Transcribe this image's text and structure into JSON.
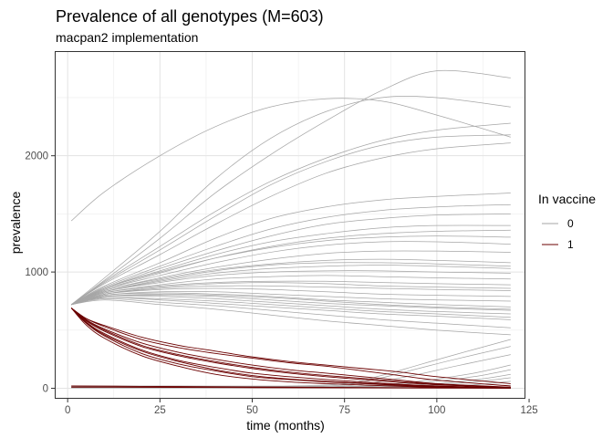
{
  "chart_data": {
    "type": "line",
    "title": "Prevalence of all genotypes (M=603)",
    "subtitle": "macpan2 implementation",
    "xlabel": "time (months)",
    "ylabel": "prevalence",
    "xlim": [
      -3.5,
      124
    ],
    "ylim": [
      -90,
      2900
    ],
    "x_ticks": [
      0,
      25,
      50,
      75,
      100,
      125
    ],
    "y_ticks": [
      0,
      1000,
      2000
    ],
    "grid": true,
    "legend": {
      "title": "In vaccine",
      "position": "right",
      "entries": [
        {
          "label": "0",
          "color": "#a6a6a6"
        },
        {
          "label": "1",
          "color": "#6b0000"
        }
      ]
    },
    "series": [
      {
        "group": "0",
        "x": [
          1,
          10,
          25,
          40,
          55,
          70,
          85,
          100,
          120
        ],
        "values": [
          1440,
          1690,
          2000,
          2250,
          2420,
          2490,
          2470,
          2350,
          2160
        ]
      },
      {
        "group": "0",
        "x": [
          1,
          10,
          25,
          40,
          55,
          70,
          85,
          100,
          120
        ],
        "values": [
          720,
          950,
          1350,
          1800,
          2150,
          2380,
          2500,
          2500,
          2420
        ]
      },
      {
        "group": "0",
        "x": [
          1,
          10,
          25,
          40,
          55,
          70,
          85,
          100,
          120
        ],
        "values": [
          720,
          930,
          1290,
          1680,
          2010,
          2300,
          2560,
          2730,
          2670
        ]
      },
      {
        "group": "0",
        "x": [
          1,
          10,
          25,
          40,
          55,
          70,
          85,
          100,
          120
        ],
        "values": [
          720,
          920,
          1220,
          1520,
          1780,
          1980,
          2130,
          2220,
          2280
        ]
      },
      {
        "group": "0",
        "x": [
          1,
          10,
          25,
          40,
          55,
          70,
          85,
          100,
          120
        ],
        "values": [
          720,
          910,
          1190,
          1480,
          1750,
          1950,
          2090,
          2160,
          2180
        ]
      },
      {
        "group": "0",
        "x": [
          1,
          10,
          25,
          40,
          55,
          70,
          85,
          100,
          120
        ],
        "values": [
          720,
          900,
          1150,
          1410,
          1650,
          1850,
          1980,
          2060,
          2110
        ]
      },
      {
        "group": "0",
        "x": [
          1,
          10,
          25,
          40,
          55,
          70,
          85,
          100,
          120
        ],
        "values": [
          720,
          880,
          1080,
          1290,
          1460,
          1560,
          1620,
          1650,
          1680
        ]
      },
      {
        "group": "0",
        "x": [
          1,
          10,
          25,
          40,
          55,
          70,
          85,
          100,
          120
        ],
        "values": [
          720,
          870,
          1050,
          1220,
          1370,
          1470,
          1530,
          1560,
          1580
        ]
      },
      {
        "group": "0",
        "x": [
          1,
          10,
          25,
          40,
          55,
          70,
          85,
          100,
          120
        ],
        "values": [
          720,
          860,
          1030,
          1180,
          1310,
          1410,
          1460,
          1490,
          1500
        ]
      },
      {
        "group": "0",
        "x": [
          1,
          10,
          25,
          40,
          55,
          70,
          85,
          100,
          120
        ],
        "values": [
          720,
          860,
          1010,
          1150,
          1260,
          1330,
          1380,
          1400,
          1400
        ]
      },
      {
        "group": "0",
        "x": [
          1,
          10,
          25,
          40,
          55,
          70,
          85,
          100,
          120
        ],
        "values": [
          720,
          850,
          990,
          1120,
          1220,
          1290,
          1330,
          1350,
          1360
        ]
      },
      {
        "group": "0",
        "x": [
          1,
          10,
          25,
          40,
          55,
          70,
          85,
          100,
          120
        ],
        "values": [
          720,
          850,
          970,
          1080,
          1170,
          1230,
          1260,
          1260,
          1240
        ]
      },
      {
        "group": "0",
        "x": [
          1,
          10,
          25,
          40,
          55,
          70,
          85,
          100,
          120
        ],
        "values": [
          720,
          840,
          950,
          1040,
          1110,
          1160,
          1180,
          1180,
          1170
        ]
      },
      {
        "group": "0",
        "x": [
          1,
          10,
          25,
          40,
          55,
          70,
          85,
          100,
          120
        ],
        "values": [
          720,
          840,
          940,
          1020,
          1070,
          1100,
          1110,
          1100,
          1080
        ]
      },
      {
        "group": "0",
        "x": [
          1,
          10,
          25,
          40,
          55,
          70,
          85,
          100,
          120
        ],
        "values": [
          720,
          830,
          920,
          990,
          1030,
          1050,
          1060,
          1050,
          1030
        ]
      },
      {
        "group": "0",
        "x": [
          1,
          10,
          25,
          40,
          55,
          70,
          85,
          100,
          120
        ],
        "values": [
          720,
          830,
          910,
          970,
          1000,
          1010,
          1010,
          1000,
          990
        ]
      },
      {
        "group": "0",
        "x": [
          1,
          10,
          25,
          40,
          55,
          70,
          85,
          100,
          120
        ],
        "values": [
          720,
          820,
          890,
          940,
          960,
          970,
          960,
          950,
          940
        ]
      },
      {
        "group": "0",
        "x": [
          1,
          10,
          25,
          40,
          55,
          70,
          85,
          100,
          120
        ],
        "values": [
          720,
          820,
          880,
          910,
          920,
          920,
          910,
          900,
          890
        ]
      },
      {
        "group": "0",
        "x": [
          1,
          10,
          25,
          40,
          55,
          70,
          85,
          100,
          120
        ],
        "values": [
          720,
          810,
          860,
          880,
          880,
          870,
          860,
          850,
          840
        ]
      },
      {
        "group": "0",
        "x": [
          1,
          10,
          25,
          40,
          55,
          70,
          85,
          100,
          120
        ],
        "values": [
          720,
          810,
          850,
          860,
          850,
          830,
          810,
          800,
          790
        ]
      },
      {
        "group": "0",
        "x": [
          1,
          10,
          25,
          40,
          55,
          70,
          85,
          100,
          120
        ],
        "values": [
          720,
          800,
          830,
          830,
          810,
          790,
          770,
          760,
          750
        ]
      },
      {
        "group": "0",
        "x": [
          1,
          10,
          25,
          40,
          55,
          70,
          85,
          100,
          120
        ],
        "values": [
          720,
          800,
          820,
          810,
          790,
          760,
          740,
          720,
          700
        ]
      },
      {
        "group": "0",
        "x": [
          1,
          10,
          25,
          40,
          55,
          70,
          85,
          100,
          120
        ],
        "values": [
          720,
          790,
          800,
          790,
          760,
          730,
          710,
          690,
          670
        ]
      },
      {
        "group": "0",
        "x": [
          1,
          10,
          25,
          40,
          55,
          70,
          85,
          100,
          120
        ],
        "values": [
          720,
          790,
          790,
          770,
          740,
          710,
          680,
          660,
          640
        ]
      },
      {
        "group": "0",
        "x": [
          1,
          10,
          25,
          40,
          55,
          70,
          85,
          100,
          120
        ],
        "values": [
          720,
          780,
          770,
          750,
          720,
          690,
          660,
          640,
          610
        ]
      },
      {
        "group": "0",
        "x": [
          1,
          10,
          25,
          40,
          55,
          70,
          85,
          100,
          120
        ],
        "values": [
          720,
          780,
          760,
          730,
          700,
          670,
          640,
          620,
          590
        ]
      },
      {
        "group": "0",
        "x": [
          1,
          10,
          25,
          40,
          55,
          70,
          85,
          100,
          120
        ],
        "values": [
          720,
          770,
          740,
          710,
          670,
          630,
          590,
          560,
          520
        ]
      },
      {
        "group": "0",
        "x": [
          1,
          10,
          25,
          40,
          55,
          70,
          85,
          100,
          120
        ],
        "values": [
          720,
          760,
          720,
          680,
          630,
          580,
          540,
          500,
          460
        ]
      },
      {
        "group": "0",
        "x": [
          1,
          10,
          25,
          40,
          55,
          70,
          85,
          100,
          120
        ],
        "values": [
          720,
          860,
          1000,
          1120,
          1210,
          1270,
          1300,
          1310,
          1300
        ]
      },
      {
        "group": "0",
        "x": [
          1,
          10,
          25,
          40,
          55,
          70,
          85,
          100,
          120
        ],
        "values": [
          720,
          830,
          930,
          1010,
          1060,
          1080,
          1080,
          1070,
          1050
        ]
      },
      {
        "group": "0",
        "x": [
          1,
          10,
          25,
          40,
          55,
          70,
          85,
          100,
          120
        ],
        "values": [
          720,
          810,
          870,
          900,
          910,
          900,
          880,
          870,
          860
        ]
      },
      {
        "group": "0",
        "x": [
          1,
          10,
          25,
          40,
          55,
          70,
          85,
          100,
          120
        ],
        "values": [
          720,
          790,
          810,
          800,
          780,
          750,
          720,
          700,
          680
        ]
      },
      {
        "group": "0",
        "x": [
          1,
          30,
          60,
          75,
          85,
          95,
          105,
          120
        ],
        "values": [
          20,
          20,
          20,
          40,
          110,
          200,
          290,
          420
        ]
      },
      {
        "group": "0",
        "x": [
          1,
          30,
          60,
          75,
          85,
          95,
          105,
          120
        ],
        "values": [
          15,
          15,
          15,
          30,
          90,
          170,
          250,
          360
        ]
      },
      {
        "group": "0",
        "x": [
          1,
          30,
          60,
          75,
          85,
          95,
          105,
          120
        ],
        "values": [
          10,
          10,
          10,
          20,
          60,
          120,
          190,
          290
        ]
      },
      {
        "group": "0",
        "x": [
          1,
          30,
          60,
          80,
          95,
          110,
          120
        ],
        "values": [
          10,
          10,
          10,
          20,
          60,
          130,
          200
        ]
      },
      {
        "group": "0",
        "x": [
          1,
          30,
          60,
          80,
          95,
          110,
          120
        ],
        "values": [
          5,
          5,
          5,
          15,
          45,
          100,
          160
        ]
      },
      {
        "group": "0",
        "x": [
          1,
          30,
          60,
          85,
          100,
          112,
          120
        ],
        "values": [
          5,
          5,
          5,
          15,
          40,
          80,
          120
        ]
      },
      {
        "group": "0",
        "x": [
          1,
          30,
          60,
          90,
          105,
          120
        ],
        "values": [
          5,
          5,
          5,
          15,
          40,
          90
        ]
      },
      {
        "group": "0",
        "x": [
          1,
          30,
          60,
          95,
          110,
          120
        ],
        "values": [
          3,
          3,
          3,
          10,
          30,
          60
        ]
      },
      {
        "group": "1",
        "x": [
          1,
          5,
          10,
          20,
          30,
          40,
          50,
          60,
          70,
          80,
          90,
          100,
          120
        ],
        "values": [
          690,
          600,
          530,
          420,
          350,
          300,
          260,
          220,
          190,
          150,
          110,
          70,
          20
        ]
      },
      {
        "group": "1",
        "x": [
          1,
          5,
          10,
          20,
          30,
          40,
          50,
          60,
          70,
          80,
          90,
          100,
          120
        ],
        "values": [
          690,
          590,
          510,
          390,
          310,
          250,
          200,
          160,
          130,
          100,
          70,
          40,
          10
        ]
      },
      {
        "group": "1",
        "x": [
          1,
          5,
          10,
          20,
          30,
          40,
          50,
          60,
          70,
          80,
          90,
          100,
          120
        ],
        "values": [
          690,
          580,
          490,
          360,
          280,
          220,
          170,
          130,
          100,
          75,
          50,
          30,
          5
        ]
      },
      {
        "group": "1",
        "x": [
          1,
          5,
          10,
          20,
          30,
          40,
          50,
          60,
          70,
          80,
          90,
          100,
          120
        ],
        "values": [
          690,
          570,
          470,
          330,
          240,
          180,
          130,
          100,
          75,
          55,
          35,
          20,
          3
        ]
      },
      {
        "group": "1",
        "x": [
          1,
          5,
          10,
          20,
          30,
          40,
          50,
          60,
          70,
          80,
          90,
          100,
          120
        ],
        "values": [
          690,
          560,
          450,
          300,
          210,
          150,
          100,
          75,
          55,
          40,
          25,
          12,
          2
        ]
      },
      {
        "group": "1",
        "x": [
          1,
          5,
          10,
          20,
          30,
          40,
          50,
          60,
          70,
          80,
          90,
          100,
          120
        ],
        "values": [
          690,
          545,
          430,
          280,
          190,
          120,
          80,
          55,
          40,
          28,
          18,
          8,
          1
        ]
      },
      {
        "group": "1",
        "x": [
          1,
          5,
          10,
          20,
          30,
          40,
          50,
          60,
          70,
          80,
          90,
          100,
          120
        ],
        "values": [
          690,
          600,
          540,
          440,
          370,
          320,
          270,
          230,
          200,
          170,
          140,
          100,
          40
        ]
      },
      {
        "group": "1",
        "x": [
          1,
          5,
          10,
          20,
          30,
          40,
          50,
          60,
          70,
          80,
          90,
          100,
          120
        ],
        "values": [
          690,
          585,
          500,
          370,
          290,
          230,
          180,
          140,
          110,
          85,
          60,
          35,
          8
        ]
      },
      {
        "group": "1",
        "x": [
          1,
          5,
          10,
          20,
          30,
          40,
          50,
          60,
          70,
          80,
          90,
          100,
          120
        ],
        "values": [
          690,
          565,
          460,
          320,
          230,
          160,
          110,
          80,
          60,
          45,
          30,
          15,
          2
        ]
      },
      {
        "group": "1",
        "x": [
          1,
          30,
          60,
          90,
          120
        ],
        "values": [
          20,
          15,
          10,
          5,
          2
        ]
      },
      {
        "group": "1",
        "x": [
          1,
          30,
          60,
          90,
          120
        ],
        "values": [
          10,
          8,
          5,
          3,
          1
        ]
      }
    ]
  }
}
